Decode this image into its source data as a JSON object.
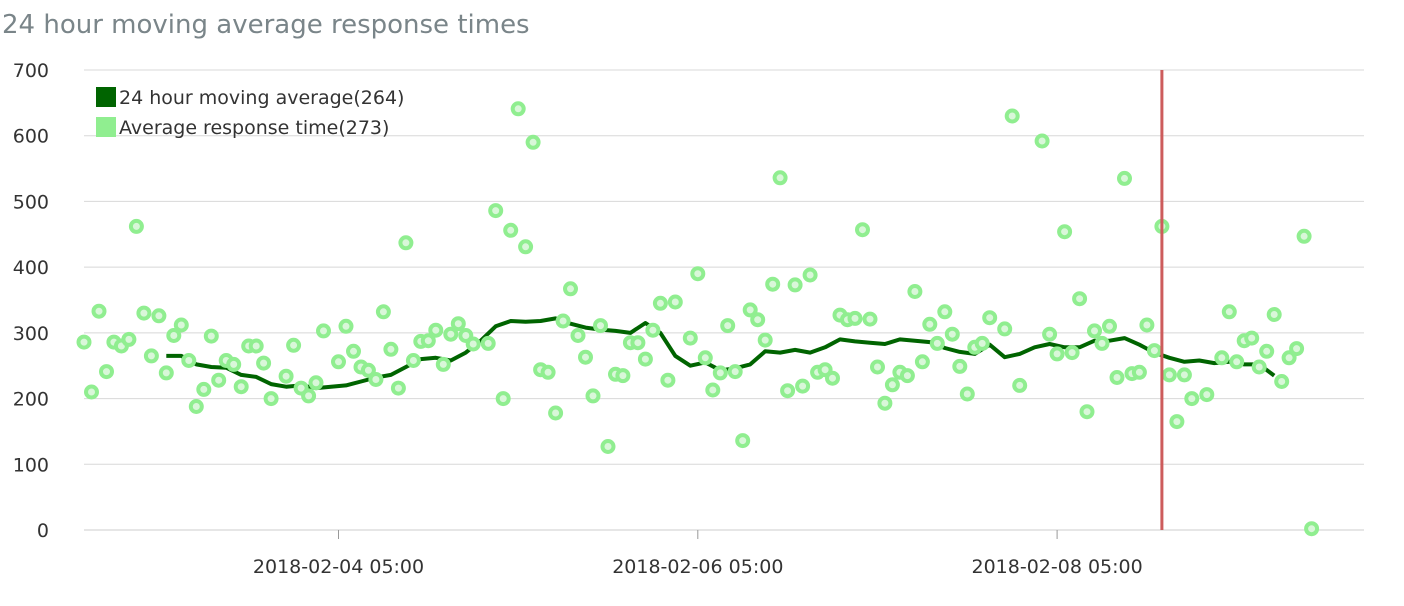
{
  "chart_data": {
    "type": "line",
    "title": "24 hour moving average response times",
    "xlabel": "",
    "ylabel": "",
    "ylim": [
      0,
      700
    ],
    "yticks": [
      0,
      100,
      200,
      300,
      400,
      500,
      600,
      700
    ],
    "xlim": [
      "2018-02-02 19:00",
      "2018-02-09 22:00"
    ],
    "xtick_labels": [
      "2018-02-04 05:00",
      "2018-02-06 05:00",
      "2018-02-08 05:00"
    ],
    "grid": true,
    "legend_position": "top-left",
    "marker_line_time": "2018-02-08 19:00",
    "colors": {
      "moving_average": "#006400",
      "response_time": "#90ee90",
      "marker_line": "#cd5c5c",
      "grid": "#d8d8d8"
    },
    "series": [
      {
        "name": "24 hour moving average",
        "legend_label": "24 hour moving average(264)",
        "kind": "line",
        "points": [
          [
            "2018-02-03 06:00",
            265
          ],
          [
            "2018-02-03 08:00",
            265
          ],
          [
            "2018-02-03 10:00",
            252
          ],
          [
            "2018-02-03 12:00",
            248
          ],
          [
            "2018-02-03 14:00",
            247
          ],
          [
            "2018-02-03 16:00",
            236
          ],
          [
            "2018-02-03 18:00",
            233
          ],
          [
            "2018-02-03 20:00",
            222
          ],
          [
            "2018-02-03 22:00",
            218
          ],
          [
            "2018-02-04 00:00",
            220
          ],
          [
            "2018-02-04 02:00",
            216
          ],
          [
            "2018-02-04 04:00",
            218
          ],
          [
            "2018-02-04 06:00",
            220
          ],
          [
            "2018-02-04 08:00",
            226
          ],
          [
            "2018-02-04 10:00",
            232
          ],
          [
            "2018-02-04 12:00",
            236
          ],
          [
            "2018-02-04 14:00",
            248
          ],
          [
            "2018-02-04 16:00",
            260
          ],
          [
            "2018-02-04 18:00",
            262
          ],
          [
            "2018-02-04 20:00",
            258
          ],
          [
            "2018-02-04 22:00",
            270
          ],
          [
            "2018-02-05 00:00",
            288
          ],
          [
            "2018-02-05 02:00",
            310
          ],
          [
            "2018-02-05 04:00",
            318
          ],
          [
            "2018-02-05 06:00",
            317
          ],
          [
            "2018-02-05 08:00",
            318
          ],
          [
            "2018-02-05 10:00",
            322
          ],
          [
            "2018-02-05 12:00",
            314
          ],
          [
            "2018-02-05 14:00",
            308
          ],
          [
            "2018-02-05 16:00",
            305
          ],
          [
            "2018-02-05 18:00",
            303
          ],
          [
            "2018-02-05 20:00",
            300
          ],
          [
            "2018-02-05 22:00",
            315
          ],
          [
            "2018-02-06 00:00",
            300
          ],
          [
            "2018-02-06 02:00",
            265
          ],
          [
            "2018-02-06 04:00",
            250
          ],
          [
            "2018-02-06 06:00",
            255
          ],
          [
            "2018-02-06 08:00",
            243
          ],
          [
            "2018-02-06 10:00",
            246
          ],
          [
            "2018-02-06 12:00",
            252
          ],
          [
            "2018-02-06 14:00",
            272
          ],
          [
            "2018-02-06 16:00",
            270
          ],
          [
            "2018-02-06 18:00",
            274
          ],
          [
            "2018-02-06 20:00",
            270
          ],
          [
            "2018-02-06 22:00",
            278
          ],
          [
            "2018-02-07 00:00",
            290
          ],
          [
            "2018-02-07 02:00",
            287
          ],
          [
            "2018-02-07 04:00",
            285
          ],
          [
            "2018-02-07 06:00",
            283
          ],
          [
            "2018-02-07 08:00",
            290
          ],
          [
            "2018-02-07 10:00",
            288
          ],
          [
            "2018-02-07 12:00",
            286
          ],
          [
            "2018-02-07 14:00",
            277
          ],
          [
            "2018-02-07 16:00",
            271
          ],
          [
            "2018-02-07 18:00",
            268
          ],
          [
            "2018-02-07 20:00",
            282
          ],
          [
            "2018-02-07 22:00",
            263
          ],
          [
            "2018-02-08 00:00",
            268
          ],
          [
            "2018-02-08 02:00",
            278
          ],
          [
            "2018-02-08 04:00",
            283
          ],
          [
            "2018-02-08 06:00",
            278
          ],
          [
            "2018-02-08 08:00",
            278
          ],
          [
            "2018-02-08 10:00",
            288
          ],
          [
            "2018-02-08 12:00",
            288
          ],
          [
            "2018-02-08 14:00",
            292
          ],
          [
            "2018-02-08 16:00",
            282
          ],
          [
            "2018-02-08 18:00",
            270
          ],
          [
            "2018-02-08 20:00",
            262
          ],
          [
            "2018-02-08 22:00",
            256
          ],
          [
            "2018-02-09 00:00",
            258
          ],
          [
            "2018-02-09 02:00",
            254
          ],
          [
            "2018-02-09 04:00",
            256
          ],
          [
            "2018-02-09 06:00",
            252
          ],
          [
            "2018-02-09 08:00",
            252
          ],
          [
            "2018-02-09 10:00",
            235
          ]
        ]
      },
      {
        "name": "Average response time",
        "legend_label": "Average response time(273)",
        "kind": "scatter",
        "points": [
          [
            "2018-02-02 19:00",
            286
          ],
          [
            "2018-02-02 20:00",
            210
          ],
          [
            "2018-02-02 21:00",
            333
          ],
          [
            "2018-02-02 22:00",
            241
          ],
          [
            "2018-02-02 23:00",
            286
          ],
          [
            "2018-02-03 00:00",
            280
          ],
          [
            "2018-02-03 01:00",
            290
          ],
          [
            "2018-02-03 02:00",
            462
          ],
          [
            "2018-02-03 03:00",
            330
          ],
          [
            "2018-02-03 04:00",
            265
          ],
          [
            "2018-02-03 05:00",
            326
          ],
          [
            "2018-02-03 06:00",
            239
          ],
          [
            "2018-02-03 07:00",
            296
          ],
          [
            "2018-02-03 08:00",
            312
          ],
          [
            "2018-02-03 09:00",
            258
          ],
          [
            "2018-02-03 10:00",
            188
          ],
          [
            "2018-02-03 11:00",
            214
          ],
          [
            "2018-02-03 12:00",
            295
          ],
          [
            "2018-02-03 13:00",
            228
          ],
          [
            "2018-02-03 14:00",
            258
          ],
          [
            "2018-02-03 15:00",
            252
          ],
          [
            "2018-02-03 16:00",
            218
          ],
          [
            "2018-02-03 17:00",
            280
          ],
          [
            "2018-02-03 18:00",
            280
          ],
          [
            "2018-02-03 19:00",
            254
          ],
          [
            "2018-02-03 20:00",
            200
          ],
          [
            "2018-02-03 22:00",
            234
          ],
          [
            "2018-02-03 23:00",
            281
          ],
          [
            "2018-02-04 00:00",
            216
          ],
          [
            "2018-02-04 01:00",
            204
          ],
          [
            "2018-02-04 02:00",
            224
          ],
          [
            "2018-02-04 03:00",
            303
          ],
          [
            "2018-02-04 05:00",
            256
          ],
          [
            "2018-02-04 06:00",
            310
          ],
          [
            "2018-02-04 07:00",
            272
          ],
          [
            "2018-02-04 08:00",
            248
          ],
          [
            "2018-02-04 09:00",
            243
          ],
          [
            "2018-02-04 10:00",
            229
          ],
          [
            "2018-02-04 11:00",
            332
          ],
          [
            "2018-02-04 12:00",
            275
          ],
          [
            "2018-02-04 13:00",
            216
          ],
          [
            "2018-02-04 14:00",
            437
          ],
          [
            "2018-02-04 15:00",
            258
          ],
          [
            "2018-02-04 16:00",
            287
          ],
          [
            "2018-02-04 17:00",
            288
          ],
          [
            "2018-02-04 18:00",
            304
          ],
          [
            "2018-02-04 19:00",
            252
          ],
          [
            "2018-02-04 20:00",
            298
          ],
          [
            "2018-02-04 21:00",
            314
          ],
          [
            "2018-02-04 22:00",
            296
          ],
          [
            "2018-02-04 23:00",
            283
          ],
          [
            "2018-02-05 01:00",
            284
          ],
          [
            "2018-02-05 02:00",
            486
          ],
          [
            "2018-02-05 03:00",
            200
          ],
          [
            "2018-02-05 04:00",
            456
          ],
          [
            "2018-02-05 05:00",
            641
          ],
          [
            "2018-02-05 06:00",
            431
          ],
          [
            "2018-02-05 07:00",
            590
          ],
          [
            "2018-02-05 08:00",
            244
          ],
          [
            "2018-02-05 09:00",
            240
          ],
          [
            "2018-02-05 10:00",
            178
          ],
          [
            "2018-02-05 11:00",
            318
          ],
          [
            "2018-02-05 12:00",
            367
          ],
          [
            "2018-02-05 13:00",
            296
          ],
          [
            "2018-02-05 14:00",
            263
          ],
          [
            "2018-02-05 15:00",
            204
          ],
          [
            "2018-02-05 16:00",
            311
          ],
          [
            "2018-02-05 17:00",
            127
          ],
          [
            "2018-02-05 18:00",
            237
          ],
          [
            "2018-02-05 19:00",
            235
          ],
          [
            "2018-02-05 20:00",
            285
          ],
          [
            "2018-02-05 21:00",
            285
          ],
          [
            "2018-02-05 22:00",
            260
          ],
          [
            "2018-02-05 23:00",
            304
          ],
          [
            "2018-02-06 00:00",
            345
          ],
          [
            "2018-02-06 01:00",
            228
          ],
          [
            "2018-02-06 02:00",
            347
          ],
          [
            "2018-02-06 04:00",
            292
          ],
          [
            "2018-02-06 05:00",
            390
          ],
          [
            "2018-02-06 06:00",
            262
          ],
          [
            "2018-02-06 07:00",
            213
          ],
          [
            "2018-02-06 08:00",
            239
          ],
          [
            "2018-02-06 09:00",
            311
          ],
          [
            "2018-02-06 10:00",
            241
          ],
          [
            "2018-02-06 11:00",
            136
          ],
          [
            "2018-02-06 12:00",
            335
          ],
          [
            "2018-02-06 13:00",
            320
          ],
          [
            "2018-02-06 14:00",
            289
          ],
          [
            "2018-02-06 15:00",
            374
          ],
          [
            "2018-02-06 16:00",
            536
          ],
          [
            "2018-02-06 17:00",
            212
          ],
          [
            "2018-02-06 18:00",
            373
          ],
          [
            "2018-02-06 19:00",
            219
          ],
          [
            "2018-02-06 20:00",
            388
          ],
          [
            "2018-02-06 21:00",
            240
          ],
          [
            "2018-02-06 22:00",
            244
          ],
          [
            "2018-02-06 23:00",
            231
          ],
          [
            "2018-02-07 00:00",
            327
          ],
          [
            "2018-02-07 01:00",
            320
          ],
          [
            "2018-02-07 02:00",
            322
          ],
          [
            "2018-02-07 03:00",
            457
          ],
          [
            "2018-02-07 04:00",
            321
          ],
          [
            "2018-02-07 05:00",
            248
          ],
          [
            "2018-02-07 06:00",
            193
          ],
          [
            "2018-02-07 07:00",
            221
          ],
          [
            "2018-02-07 08:00",
            240
          ],
          [
            "2018-02-07 09:00",
            235
          ],
          [
            "2018-02-07 10:00",
            363
          ],
          [
            "2018-02-07 11:00",
            256
          ],
          [
            "2018-02-07 12:00",
            313
          ],
          [
            "2018-02-07 13:00",
            284
          ],
          [
            "2018-02-07 14:00",
            332
          ],
          [
            "2018-02-07 15:00",
            298
          ],
          [
            "2018-02-07 16:00",
            249
          ],
          [
            "2018-02-07 17:00",
            207
          ],
          [
            "2018-02-07 18:00",
            278
          ],
          [
            "2018-02-07 19:00",
            284
          ],
          [
            "2018-02-07 20:00",
            323
          ],
          [
            "2018-02-07 22:00",
            306
          ],
          [
            "2018-02-07 23:00",
            630
          ],
          [
            "2018-02-08 00:00",
            220
          ],
          [
            "2018-02-08 03:00",
            592
          ],
          [
            "2018-02-08 04:00",
            298
          ],
          [
            "2018-02-08 05:00",
            268
          ],
          [
            "2018-02-08 06:00",
            454
          ],
          [
            "2018-02-08 07:00",
            270
          ],
          [
            "2018-02-08 08:00",
            352
          ],
          [
            "2018-02-08 09:00",
            180
          ],
          [
            "2018-02-08 10:00",
            303
          ],
          [
            "2018-02-08 11:00",
            284
          ],
          [
            "2018-02-08 12:00",
            310
          ],
          [
            "2018-02-08 13:00",
            232
          ],
          [
            "2018-02-08 14:00",
            535
          ],
          [
            "2018-02-08 15:00",
            238
          ],
          [
            "2018-02-08 16:00",
            240
          ],
          [
            "2018-02-08 17:00",
            312
          ],
          [
            "2018-02-08 18:00",
            273
          ],
          [
            "2018-02-08 19:00",
            462
          ],
          [
            "2018-02-08 20:00",
            236
          ],
          [
            "2018-02-08 21:00",
            165
          ],
          [
            "2018-02-08 22:00",
            236
          ],
          [
            "2018-02-08 23:00",
            200
          ],
          [
            "2018-02-09 01:00",
            206
          ],
          [
            "2018-02-09 03:00",
            262
          ],
          [
            "2018-02-09 04:00",
            332
          ],
          [
            "2018-02-09 05:00",
            256
          ],
          [
            "2018-02-09 06:00",
            288
          ],
          [
            "2018-02-09 07:00",
            292
          ],
          [
            "2018-02-09 08:00",
            248
          ],
          [
            "2018-02-09 09:00",
            272
          ],
          [
            "2018-02-09 10:00",
            328
          ],
          [
            "2018-02-09 11:00",
            226
          ],
          [
            "2018-02-09 12:00",
            262
          ],
          [
            "2018-02-09 13:00",
            276
          ],
          [
            "2018-02-09 14:00",
            447
          ],
          [
            "2018-02-09 15:00",
            2
          ]
        ]
      }
    ]
  }
}
